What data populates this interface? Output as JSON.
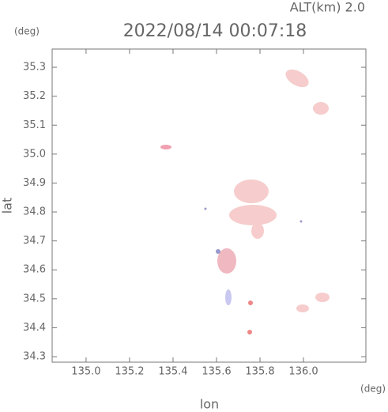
{
  "chart_data": {
    "type": "map",
    "title": "2022/08/14 00:07:18",
    "subtitle": "ALT(km) 2.0",
    "x_label": "lon",
    "y_label": "lat",
    "x_unit": "(deg)",
    "y_unit": "(deg)",
    "xlim": [
      134.844,
      136.287
    ],
    "ylim": [
      34.281,
      35.363
    ],
    "xticks": [
      {
        "value": 135,
        "label": "135.0"
      },
      135.2,
      135.4,
      135.6,
      135.8,
      {
        "value": 136,
        "label": "136.0"
      }
    ],
    "yticks": [
      34.3,
      34.4,
      34.5,
      34.6,
      34.7,
      34.8,
      34.9,
      {
        "value": 35,
        "label": "35.0"
      },
      35.1,
      35.2,
      35.3
    ],
    "grid": false
  }
}
